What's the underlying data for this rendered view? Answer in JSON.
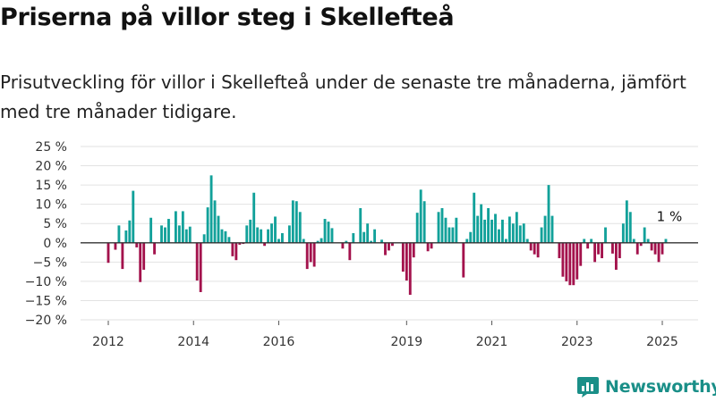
{
  "header": {
    "title": "Priserna på villor steg i Skellefteå",
    "subtitle": "Prisutveckling för villor i Skellefteå under de senaste tre månaderna, jämfört med tre månader tidigare."
  },
  "brand": {
    "name": "Newsworthy",
    "icon": "newsworthy-logo-icon",
    "color": "#1a8f88"
  },
  "colors": {
    "positive": "#12a19a",
    "negative": "#a3124c",
    "grid": "#e2e2e2",
    "zero_line": "#333333"
  },
  "chart_data": {
    "type": "bar",
    "title": "",
    "xlabel": "",
    "ylabel": "",
    "ylim": [
      -20,
      25
    ],
    "y_ticks": [
      25,
      20,
      15,
      10,
      5,
      0,
      -5,
      -10,
      -15,
      -20
    ],
    "y_tick_labels": [
      "25 %",
      "20 %",
      "15 %",
      "10 %",
      "5 %",
      "0 %",
      "−5 %",
      "−10 %",
      "−15 %",
      "−20 %"
    ],
    "x_ticks": [
      "2012",
      "2014",
      "2016",
      "2019",
      "2021",
      "2023",
      "2025"
    ],
    "grid": true,
    "annotation": {
      "text": "1 %",
      "x": "2025-02",
      "value": 1
    },
    "x": [
      "2012-01",
      "2012-02",
      "2012-03",
      "2012-04",
      "2012-05",
      "2012-06",
      "2012-07",
      "2012-08",
      "2012-09",
      "2012-10",
      "2012-11",
      "2012-12",
      "2013-01",
      "2013-02",
      "2013-03",
      "2013-04",
      "2013-05",
      "2013-06",
      "2013-07",
      "2013-08",
      "2013-09",
      "2013-10",
      "2013-11",
      "2013-12",
      "2014-01",
      "2014-02",
      "2014-03",
      "2014-04",
      "2014-05",
      "2014-06",
      "2014-07",
      "2014-08",
      "2014-09",
      "2014-10",
      "2014-11",
      "2014-12",
      "2015-01",
      "2015-02",
      "2015-03",
      "2015-04",
      "2015-05",
      "2015-06",
      "2015-07",
      "2015-08",
      "2015-09",
      "2015-10",
      "2015-11",
      "2015-12",
      "2016-01",
      "2016-02",
      "2016-03",
      "2016-04",
      "2016-05",
      "2016-06",
      "2016-07",
      "2016-08",
      "2016-09",
      "2016-10",
      "2016-11",
      "2016-12",
      "2017-01",
      "2017-02",
      "2017-03",
      "2017-04",
      "2017-05",
      "2017-06",
      "2017-07",
      "2017-08",
      "2017-09",
      "2017-10",
      "2017-11",
      "2017-12",
      "2018-01",
      "2018-02",
      "2018-03",
      "2018-04",
      "2018-05",
      "2018-06",
      "2018-07",
      "2018-08",
      "2018-09",
      "2018-10",
      "2018-11",
      "2018-12",
      "2019-01",
      "2019-02",
      "2019-03",
      "2019-04",
      "2019-05",
      "2019-06",
      "2019-07",
      "2019-08",
      "2019-09",
      "2019-10",
      "2019-11",
      "2019-12",
      "2020-01",
      "2020-02",
      "2020-03",
      "2020-04",
      "2020-05",
      "2020-06",
      "2020-07",
      "2020-08",
      "2020-09",
      "2020-10",
      "2020-11",
      "2020-12",
      "2021-01",
      "2021-02",
      "2021-03",
      "2021-04",
      "2021-05",
      "2021-06",
      "2021-07",
      "2021-08",
      "2021-09",
      "2021-10",
      "2021-11",
      "2021-12",
      "2022-01",
      "2022-02",
      "2022-03",
      "2022-04",
      "2022-05",
      "2022-06",
      "2022-07",
      "2022-08",
      "2022-09",
      "2022-10",
      "2022-11",
      "2022-12",
      "2023-01",
      "2023-02",
      "2023-03",
      "2023-04",
      "2023-05",
      "2023-06",
      "2023-07",
      "2023-08",
      "2023-09",
      "2023-10",
      "2023-11",
      "2023-12",
      "2024-01",
      "2024-02",
      "2024-03",
      "2024-04",
      "2024-05",
      "2024-06",
      "2024-07",
      "2024-08",
      "2024-09",
      "2024-10",
      "2024-11",
      "2024-12",
      "2025-01",
      "2025-02"
    ],
    "values": [
      -5.2,
      null,
      -1.8,
      4.5,
      -6.8,
      3.2,
      5.8,
      13.5,
      -1.2,
      -10.2,
      -7.0,
      null,
      6.5,
      -3.0,
      null,
      4.5,
      4.0,
      6.2,
      null,
      8.2,
      4.5,
      8.2,
      3.5,
      4.2,
      null,
      -9.8,
      -12.8,
      2.2,
      9.2,
      17.5,
      11.0,
      7.0,
      3.5,
      3.0,
      1.5,
      -3.5,
      -4.5,
      -0.5,
      -0.3,
      4.5,
      6.0,
      13.0,
      4.0,
      3.5,
      -0.8,
      3.5,
      5.0,
      6.8,
      1.0,
      2.5,
      null,
      4.5,
      11.0,
      10.8,
      8.0,
      1.0,
      -6.8,
      -5.0,
      -6.2,
      0.5,
      1.2,
      6.2,
      5.5,
      3.8,
      null,
      null,
      -1.5,
      0.5,
      -4.5,
      2.5,
      null,
      9.0,
      2.8,
      5.0,
      0.5,
      3.5,
      null,
      0.8,
      -3.2,
      -2.0,
      -0.8,
      null,
      null,
      -7.5,
      -9.8,
      -13.5,
      -3.8,
      7.8,
      13.8,
      10.8,
      -2.2,
      -1.5,
      null,
      8.0,
      9.0,
      6.5,
      4.0,
      4.0,
      6.5,
      null,
      -9.0,
      1.0,
      2.8,
      13.0,
      7.0,
      10.0,
      6.0,
      9.0,
      6.0,
      7.5,
      3.5,
      6.0,
      1.0,
      6.8,
      5.0,
      8.0,
      4.5,
      5.0,
      1.0,
      -2.0,
      -3.0,
      -3.8,
      4.0,
      7.0,
      15.0,
      7.0,
      null,
      -4.0,
      -8.8,
      -10.0,
      -11.0,
      -11.0,
      -9.5,
      -6.0,
      1.0,
      -1.5,
      1.0,
      -5.0,
      -3.0,
      -4.0,
      4.0,
      null,
      -2.8,
      -7.0,
      -4.0,
      5.0,
      11.0,
      8.0,
      1.0,
      -3.0,
      -0.8,
      4.0,
      1.0,
      -2.0,
      -3.0,
      -5.0,
      -3.0,
      1.0
    ]
  }
}
